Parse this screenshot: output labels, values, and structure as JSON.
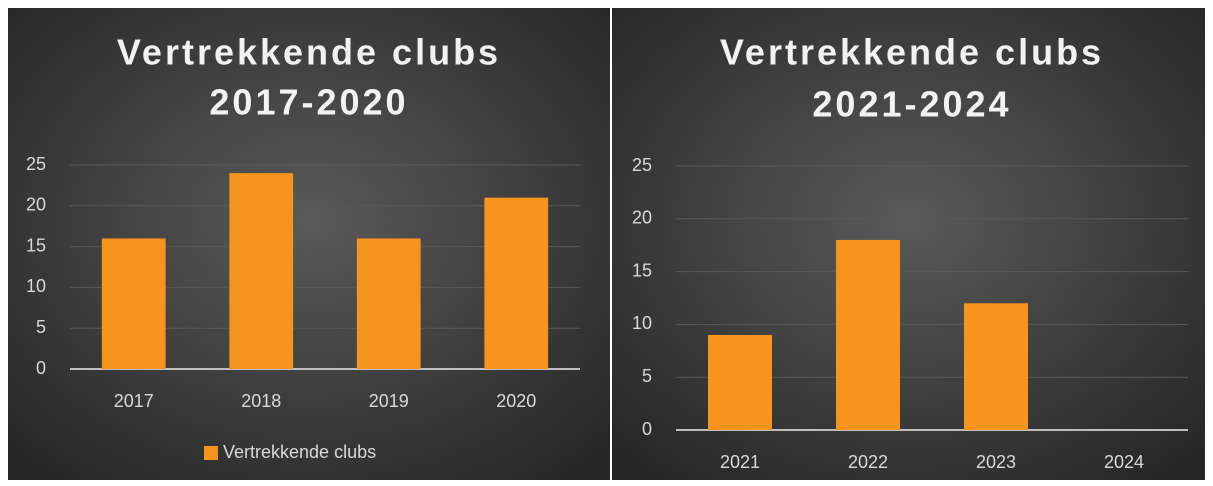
{
  "chart_data": [
    {
      "type": "bar",
      "title": [
        "Vertrekkende clubs",
        "2017-2020"
      ],
      "categories": [
        "2017",
        "2018",
        "2019",
        "2020"
      ],
      "series": [
        {
          "name": "Vertrekkende clubs",
          "color": "#f7941d",
          "values": [
            16,
            24,
            16,
            21
          ]
        }
      ],
      "ylim": [
        0,
        25
      ],
      "yticks": [
        0,
        5,
        10,
        15,
        20,
        25
      ],
      "grid": true,
      "legend": "bottom"
    },
    {
      "type": "bar",
      "title": [
        "Vertrekkende clubs",
        "2021-2024"
      ],
      "categories": [
        "2021",
        "2022",
        "2023",
        "2024"
      ],
      "series": [
        {
          "name": "Vertrekkende clubs",
          "color": "#f7941d",
          "values": [
            9,
            18,
            12,
            0
          ]
        }
      ],
      "ylim": [
        0,
        25
      ],
      "yticks": [
        0,
        5,
        10,
        15,
        20,
        25
      ],
      "grid": true,
      "legend": "none"
    }
  ]
}
